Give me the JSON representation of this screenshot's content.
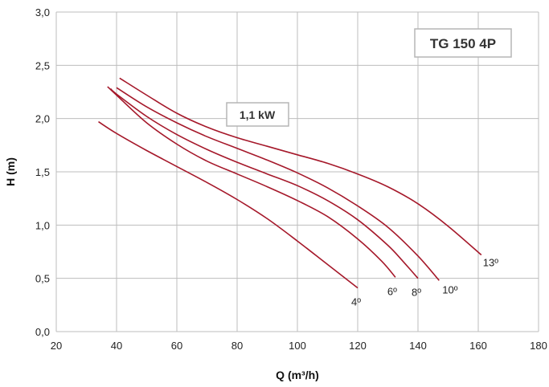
{
  "chart_data": {
    "type": "line",
    "title": "TG 150 4P",
    "annotation": "1,1 kW",
    "xlabel": "Q (m³/h)",
    "ylabel": "H (m)",
    "xlim": [
      20,
      180
    ],
    "ylim": [
      0,
      3
    ],
    "x_ticks": [
      "20",
      "40",
      "60",
      "80",
      "100",
      "120",
      "140",
      "160",
      "180"
    ],
    "y_ticks": [
      "0,0",
      "0,5",
      "1,0",
      "1,5",
      "2,0",
      "2,5",
      "3,0"
    ],
    "grid": true,
    "line_color": "#a5182a",
    "series": [
      {
        "name": "4º",
        "x": [
          34,
          40,
          50,
          60,
          70,
          80,
          90,
          100,
          110,
          120
        ],
        "y": [
          1.97,
          1.86,
          1.7,
          1.55,
          1.4,
          1.24,
          1.06,
          0.85,
          0.63,
          0.41
        ]
      },
      {
        "name": "6º",
        "x": [
          37,
          40,
          50,
          60,
          70,
          80,
          90,
          100,
          110,
          120,
          128,
          132.5
        ],
        "y": [
          2.3,
          2.22,
          1.96,
          1.76,
          1.6,
          1.48,
          1.36,
          1.23,
          1.08,
          0.87,
          0.66,
          0.51
        ]
      },
      {
        "name": "8º",
        "x": [
          38,
          40,
          50,
          60,
          70,
          80,
          90,
          100,
          110,
          120,
          130,
          135,
          140
        ],
        "y": [
          2.28,
          2.23,
          2.02,
          1.85,
          1.71,
          1.59,
          1.48,
          1.37,
          1.23,
          1.05,
          0.81,
          0.66,
          0.5
        ]
      },
      {
        "name": "10º",
        "x": [
          40,
          50,
          60,
          70,
          80,
          90,
          100,
          110,
          120,
          130,
          140,
          147
        ],
        "y": [
          2.29,
          2.11,
          1.96,
          1.83,
          1.72,
          1.61,
          1.49,
          1.35,
          1.18,
          0.98,
          0.71,
          0.48
        ]
      },
      {
        "name": "13º",
        "x": [
          41,
          50,
          60,
          70,
          80,
          90,
          100,
          110,
          120,
          130,
          140,
          150,
          161
        ],
        "y": [
          2.38,
          2.22,
          2.05,
          1.92,
          1.82,
          1.74,
          1.66,
          1.58,
          1.48,
          1.36,
          1.2,
          0.99,
          0.72
        ]
      }
    ],
    "curve_label_offsets": {}
  }
}
